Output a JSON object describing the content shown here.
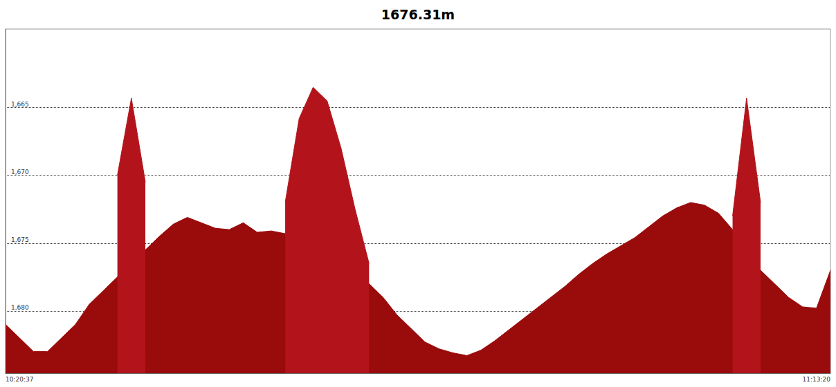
{
  "chart_data": {
    "type": "area",
    "title": "1676.31m",
    "categories": [
      "10:20:37",
      null,
      null,
      null,
      null,
      null,
      null,
      null,
      null,
      null,
      null,
      null,
      null,
      null,
      null,
      null,
      null,
      null,
      null,
      null,
      null,
      null,
      null,
      null,
      null,
      null,
      null,
      null,
      null,
      null,
      null,
      null,
      null,
      null,
      null,
      null,
      null,
      null,
      null,
      null,
      null,
      null,
      null,
      null,
      null,
      null,
      null,
      null,
      null,
      null,
      null,
      null,
      null,
      null,
      null,
      null,
      null,
      null,
      null,
      "11:13:20"
    ],
    "series": [
      {
        "color": "#9a0b0b",
        "values": [
          1681,
          1682,
          1683,
          1683,
          1682,
          1681,
          1679.5,
          1678.5,
          1677.5,
          1676.3,
          1675.5,
          1674.5,
          1673.6,
          1673.1,
          1673.5,
          1673.9,
          1674,
          1673.5,
          1674.2,
          1674.1,
          1674.3,
          1675.5,
          1676.3,
          1676.6,
          1677,
          1677.4,
          1678,
          1679,
          1680.3,
          1681.3,
          1682.3,
          1682.8,
          1683.1,
          1683.3,
          1682.9,
          1682.2,
          1681.4,
          1680.6,
          1679.8,
          1679,
          1678.2,
          1677.3,
          1676.5,
          1675.8,
          1675.2,
          1674.6,
          1673.8,
          1673,
          1672.4,
          1672,
          1672.2,
          1672.8,
          1674,
          1675.5,
          1677,
          1678,
          1679,
          1679.7,
          1679.8,
          1677
        ]
      },
      {
        "color": "#b3141c",
        "values": [
          null,
          null,
          null,
          null,
          null,
          null,
          null,
          null,
          1670,
          1664.3,
          1670.5,
          null,
          null,
          null,
          null,
          null,
          null,
          null,
          null,
          null,
          1672,
          1665.8,
          1663.5,
          1664.5,
          1668,
          1672.5,
          1676.5,
          null,
          null,
          null,
          null,
          null,
          null,
          null,
          null,
          null,
          null,
          null,
          null,
          null,
          null,
          null,
          null,
          null,
          null,
          null,
          null,
          null,
          null,
          null,
          null,
          null,
          1673,
          1664.3,
          1672,
          null,
          null,
          null,
          null,
          null
        ]
      }
    ],
    "ylim": [
      1684.6,
      1659.2
    ],
    "yticks": [
      1665,
      1670,
      1675,
      1680
    ],
    "grid": true
  }
}
